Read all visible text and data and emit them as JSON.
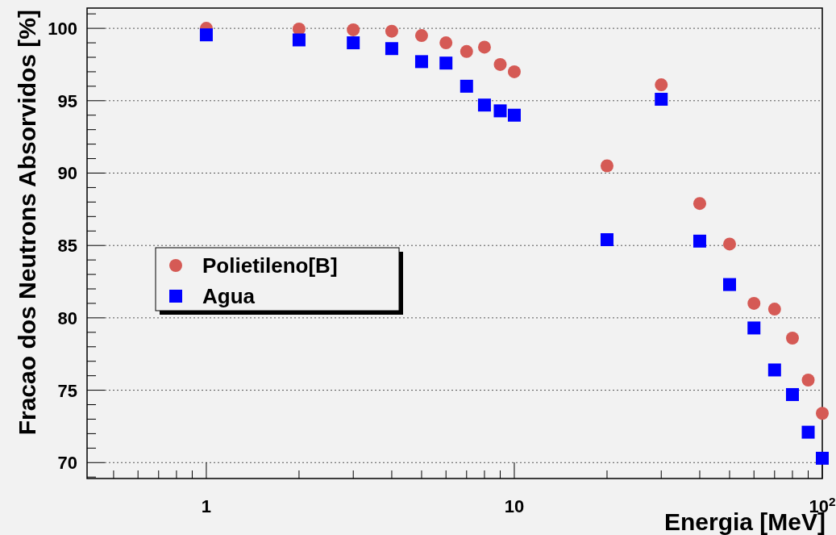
{
  "chart_data": {
    "type": "scatter",
    "xlabel": "Energia [MeV]",
    "ylabel": "Fracao dos Neutrons Absorvidos [%]",
    "log": "x",
    "xlim": [
      0.41,
      100
    ],
    "ylim": [
      68.9,
      101.4
    ],
    "xticks": [
      {
        "value": 0.5,
        "label": null
      },
      {
        "value": 0.6,
        "label": null
      },
      {
        "value": 0.7,
        "label": null
      },
      {
        "value": 0.8,
        "label": null
      },
      {
        "value": 0.9,
        "label": null
      },
      1,
      {
        "value": 2,
        "label": null
      },
      {
        "value": 3,
        "label": null
      },
      {
        "value": 4,
        "label": null
      },
      {
        "value": 5,
        "label": null
      },
      {
        "value": 6,
        "label": null
      },
      {
        "value": 7,
        "label": null
      },
      {
        "value": 8,
        "label": null
      },
      {
        "value": 9,
        "label": null
      },
      10,
      {
        "value": 20,
        "label": null
      },
      {
        "value": 30,
        "label": null
      },
      {
        "value": 40,
        "label": null
      },
      {
        "value": 50,
        "label": null
      },
      {
        "value": 60,
        "label": null
      },
      {
        "value": 70,
        "label": null
      },
      {
        "value": 80,
        "label": null
      },
      {
        "value": 90,
        "label": null
      },
      {
        "value": 100,
        "label": "10$^{2}$"
      }
    ],
    "yticks": [
      {
        "value": 69,
        "label": null
      },
      70,
      {
        "value": 71,
        "label": null
      },
      {
        "value": 72,
        "label": null
      },
      {
        "value": 73,
        "label": null
      },
      {
        "value": 74,
        "label": null
      },
      75,
      {
        "value": 76,
        "label": null
      },
      {
        "value": 77,
        "label": null
      },
      {
        "value": 78,
        "label": null
      },
      {
        "value": 79,
        "label": null
      },
      80,
      {
        "value": 81,
        "label": null
      },
      {
        "value": 82,
        "label": null
      },
      {
        "value": 83,
        "label": null
      },
      {
        "value": 84,
        "label": null
      },
      85,
      {
        "value": 86,
        "label": null
      },
      {
        "value": 87,
        "label": null
      },
      {
        "value": 88,
        "label": null
      },
      {
        "value": 89,
        "label": null
      },
      90,
      {
        "value": 91,
        "label": null
      },
      {
        "value": 92,
        "label": null
      },
      {
        "value": 93,
        "label": null
      },
      {
        "value": 94,
        "label": null
      },
      95,
      {
        "value": 96,
        "label": null
      },
      {
        "value": 97,
        "label": null
      },
      {
        "value": 98,
        "label": null
      },
      {
        "value": 99,
        "label": null
      },
      100,
      {
        "value": 101,
        "label": null
      }
    ],
    "grid": "y",
    "legend": "left",
    "x": [
      1,
      2,
      3,
      4,
      5,
      6,
      7,
      8,
      9,
      10,
      20,
      30,
      40,
      50,
      60,
      70,
      80,
      90,
      100
    ],
    "series": [
      {
        "name": "Polietileno[B]",
        "color": "#d55a55",
        "marker": "circle",
        "values": [
          100.0,
          99.95,
          99.9,
          99.8,
          99.5,
          99.0,
          98.4,
          98.7,
          97.5,
          97.0,
          90.5,
          96.1,
          87.9,
          85.1,
          81.0,
          80.6,
          78.6,
          75.7,
          73.4
        ]
      },
      {
        "name": "Agua",
        "color": "#0000ff",
        "marker": "square",
        "values": [
          99.55,
          99.2,
          99.0,
          98.6,
          97.7,
          97.6,
          96.0,
          94.7,
          94.3,
          94.0,
          85.4,
          95.1,
          85.3,
          82.3,
          79.3,
          76.4,
          74.7,
          72.1,
          70.3
        ]
      }
    ]
  }
}
